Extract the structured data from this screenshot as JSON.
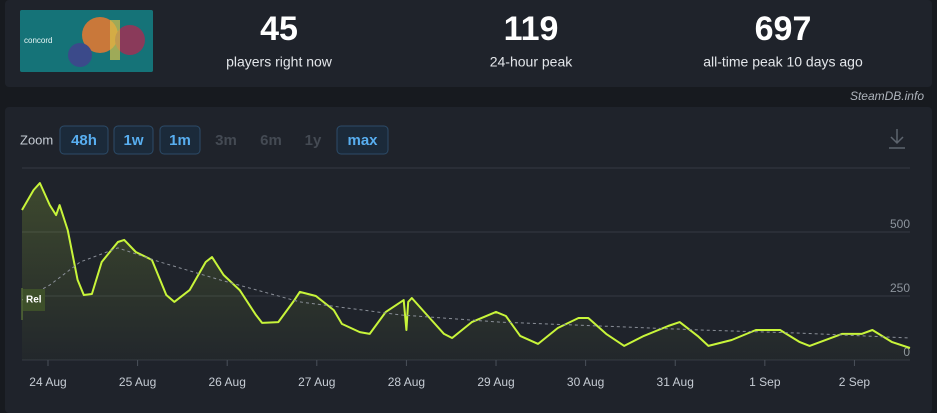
{
  "header": {
    "thumbnail_text": "concord",
    "stats": [
      {
        "value": 45,
        "label": "players right now"
      },
      {
        "value": 119,
        "label": "24-hour peak"
      },
      {
        "value": 697,
        "label": "all-time peak 10 days ago"
      }
    ]
  },
  "watermark": "SteamDB.info",
  "zoom": {
    "label": "Zoom",
    "buttons": [
      {
        "label": "48h",
        "enabled": true
      },
      {
        "label": "1w",
        "enabled": true
      },
      {
        "label": "1m",
        "enabled": true
      },
      {
        "label": "3m",
        "enabled": false
      },
      {
        "label": "6m",
        "enabled": false
      },
      {
        "label": "1y",
        "enabled": false
      },
      {
        "label": "max",
        "enabled": true
      }
    ]
  },
  "chart_data": {
    "type": "line",
    "xlim": [
      -0.29,
      9.62
    ],
    "ylim": [
      0,
      750
    ],
    "xticks": [
      {
        "value": 0,
        "label": "24 Aug"
      },
      {
        "value": 1,
        "label": "25 Aug"
      },
      {
        "value": 2,
        "label": "26 Aug"
      },
      {
        "value": 3,
        "label": "27 Aug"
      },
      {
        "value": 4,
        "label": "28 Aug"
      },
      {
        "value": 5,
        "label": "29 Aug"
      },
      {
        "value": 6,
        "label": "30 Aug"
      },
      {
        "value": 7,
        "label": "31 Aug"
      },
      {
        "value": 8,
        "label": "1 Sep"
      },
      {
        "value": 9,
        "label": "2 Sep"
      }
    ],
    "yticks": [
      0,
      250,
      500
    ],
    "grid": true,
    "annotations": [
      {
        "x": -0.29,
        "text": "Rel"
      }
    ],
    "series": [
      {
        "color": "#c8f53a",
        "style": "solid",
        "x": [
          -0.29,
          -0.16,
          -0.09,
          0.02,
          0.09,
          0.13,
          0.22,
          0.33,
          0.4,
          0.49,
          0.6,
          0.78,
          0.85,
          0.98,
          1.16,
          1.32,
          1.41,
          1.58,
          1.76,
          1.83,
          1.96,
          2.14,
          2.32,
          2.39,
          2.57,
          2.75,
          2.81,
          2.99,
          3.19,
          3.28,
          3.48,
          3.59,
          3.77,
          3.97,
          4.0,
          4.02,
          4.06,
          4.24,
          4.42,
          4.51,
          4.73,
          5.0,
          5.11,
          5.27,
          5.47,
          5.69,
          5.92,
          6.03,
          6.23,
          6.43,
          6.65,
          6.92,
          7.05,
          7.25,
          7.37,
          7.63,
          7.9,
          8.17,
          8.39,
          8.5,
          8.86,
          9.08,
          9.2,
          9.42,
          9.62
        ],
        "values": [
          586,
          664,
          691,
          605,
          566,
          605,
          508,
          313,
          254,
          258,
          383,
          461,
          469,
          422,
          391,
          254,
          227,
          273,
          383,
          402,
          332,
          273,
          176,
          145,
          148,
          234,
          266,
          250,
          195,
          141,
          109,
          102,
          188,
          234,
          117,
          227,
          242,
          172,
          102,
          86,
          148,
          188,
          172,
          94,
          63,
          125,
          164,
          164,
          102,
          55,
          94,
          133,
          148,
          94,
          55,
          78,
          117,
          117,
          70,
          55,
          102,
          102,
          117,
          70,
          47
        ]
      },
      {
        "color": "#8a8f98",
        "style": "dashed",
        "x": [
          -0.29,
          0.02,
          0.36,
          0.78,
          1.25,
          1.92,
          2.81,
          3.93,
          5.04,
          6.16,
          7.28,
          8.39,
          9.62
        ],
        "values": [
          234,
          293,
          383,
          438,
          383,
          313,
          227,
          176,
          148,
          133,
          117,
          105,
          86
        ]
      }
    ]
  }
}
